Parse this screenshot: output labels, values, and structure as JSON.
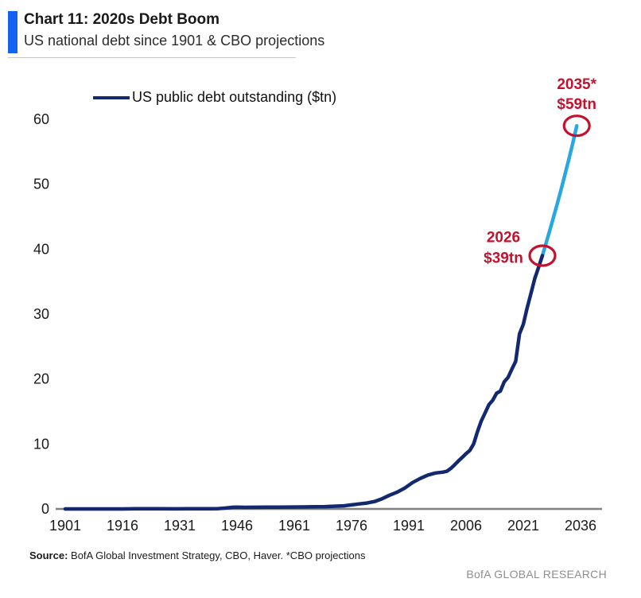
{
  "header": {
    "title": "Chart 11: 2020s Debt Boom",
    "subtitle": "US national debt since 1901 & CBO projections"
  },
  "legend": {
    "label": "US public debt outstanding ($tn)"
  },
  "footer": {
    "source_label": "Source:",
    "source_text": "BofA Global Investment Strategy, CBO, Haver. *CBO projections",
    "brand": "BofA GLOBAL RESEARCH"
  },
  "colors": {
    "navy": "#13296f",
    "cyan": "#2aa7e0",
    "red": "#c4122e",
    "accent_blue": "#1362f0",
    "axis_gray": "#7f7f7f"
  },
  "chart_data": {
    "type": "line",
    "title": "US public debt outstanding ($tn)",
    "xlabel": "",
    "ylabel": "",
    "grid": false,
    "legend_position": "top-left",
    "xlim": [
      1898,
      2042
    ],
    "ylim": [
      0,
      60
    ],
    "x_ticks": [
      1901,
      1916,
      1931,
      1946,
      1961,
      1976,
      1991,
      2006,
      2021,
      2036
    ],
    "y_ticks": [
      0,
      10,
      20,
      30,
      40,
      50,
      60
    ],
    "series": [
      {
        "key": "historical",
        "name": "US public debt outstanding ($tn)",
        "color_key": "navy",
        "x": [
          1901,
          1905,
          1910,
          1914,
          1916,
          1918,
          1919,
          1920,
          1923,
          1926,
          1930,
          1933,
          1936,
          1939,
          1941,
          1943,
          1945,
          1946,
          1948,
          1951,
          1954,
          1957,
          1960,
          1963,
          1966,
          1969,
          1972,
          1974,
          1976,
          1978,
          1980,
          1982,
          1984,
          1986,
          1988,
          1990,
          1992,
          1994,
          1996,
          1998,
          2000,
          2001,
          2002,
          2003,
          2004,
          2005,
          2006,
          2007,
          2008,
          2009,
          2010,
          2011,
          2012,
          2013,
          2014,
          2015,
          2016,
          2017,
          2018,
          2019,
          2020,
          2021,
          2022,
          2023,
          2024,
          2025,
          2026
        ],
        "y": [
          0.001,
          0.001,
          0.003,
          0.003,
          0.004,
          0.015,
          0.027,
          0.026,
          0.022,
          0.02,
          0.016,
          0.023,
          0.034,
          0.04,
          0.049,
          0.14,
          0.26,
          0.27,
          0.25,
          0.255,
          0.27,
          0.27,
          0.29,
          0.31,
          0.33,
          0.35,
          0.43,
          0.48,
          0.62,
          0.77,
          0.91,
          1.14,
          1.57,
          2.12,
          2.6,
          3.23,
          4.06,
          4.69,
          5.22,
          5.53,
          5.67,
          5.81,
          6.23,
          6.78,
          7.38,
          7.93,
          8.51,
          9.01,
          10.02,
          11.91,
          13.56,
          14.79,
          16.07,
          16.74,
          17.82,
          18.15,
          19.57,
          20.24,
          21.52,
          22.72,
          26.95,
          28.43,
          30.93,
          33.17,
          35.46,
          37.2,
          39.0
        ]
      },
      {
        "key": "projection",
        "name": "CBO projection",
        "color_key": "cyan",
        "x": [
          2026,
          2027,
          2028,
          2029,
          2030,
          2031,
          2032,
          2033,
          2034,
          2035
        ],
        "y": [
          39.0,
          41.0,
          43.0,
          45.1,
          47.2,
          49.4,
          51.7,
          54.0,
          56.4,
          59.0
        ]
      }
    ],
    "annotations": [
      {
        "year": 2026,
        "value": 39,
        "lines": [
          "2026",
          "$39tn"
        ],
        "label_side": "left"
      },
      {
        "year": 2035,
        "value": 59,
        "lines": [
          "2035*",
          "$59tn"
        ],
        "label_side": "above"
      }
    ]
  }
}
